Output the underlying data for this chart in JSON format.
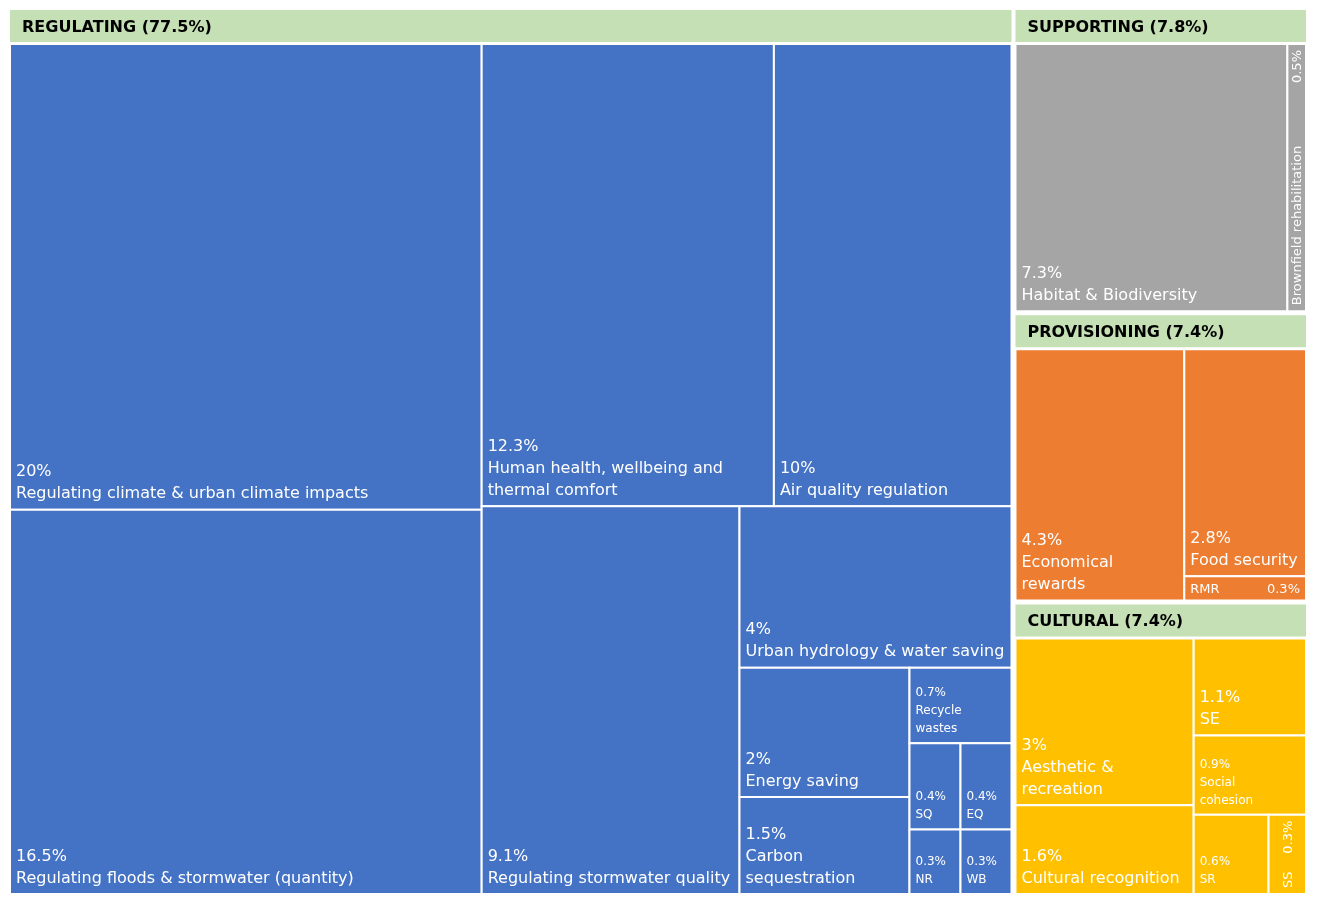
{
  "chart_data": {
    "type": "other",
    "annotations": [
      "REGULATING (77.5%)",
      "SUPPORTING (7.8%)",
      "PROVISIONING (7.4%)",
      "CULTURAL (7.4%)"
    ],
    "categories": [
      "Regulating climate & urban climate impacts",
      "Regulating floods & stormwater (quantity)",
      "Human health, wellbeing and thermal comfort",
      "Air quality regulation",
      "Regulating stormwater quality",
      "Urban hydrology & water saving",
      "Energy saving",
      "Carbon sequestration",
      "Recycle wastes",
      "SQ",
      "EQ",
      "NR",
      "WB",
      "Habitat & Biodiversity",
      "Brownfield rehabilitation",
      "Economical rewards",
      "Food security",
      "RMR",
      "Aesthetic & recreation",
      "Cultural recognition",
      "SE",
      "Social cohesion",
      "SR",
      "SS"
    ],
    "values": [
      20,
      16.5,
      12.3,
      10,
      9.1,
      4,
      2,
      1.5,
      0.7,
      0.4,
      0.4,
      0.3,
      0.3,
      7.3,
      0.5,
      4.3,
      2.8,
      0.3,
      3,
      1.6,
      1.1,
      0.9,
      0.6,
      0.3
    ],
    "value_labels": [
      "20%",
      "16.5%",
      "12.3%",
      "10%",
      "9.1%",
      "4%",
      "2%",
      "1.5%",
      "0.7%",
      "0.4%",
      "0.4%",
      "0.3%",
      "0.3%",
      "7.3%",
      "0.5%",
      "4.3%",
      "2.8%",
      "0.3%",
      "3%",
      "1.6%",
      "1.1%",
      "0.9%",
      "0.6%",
      "0.3%"
    ],
    "colors": [
      "#4472c4",
      "#4472c4",
      "#4472c4",
      "#4472c4",
      "#4472c4",
      "#4472c4",
      "#4472c4",
      "#4472c4",
      "#4472c4",
      "#4472c4",
      "#4472c4",
      "#4472c4",
      "#4472c4",
      "#a5a5a5",
      "#a5a5a5",
      "#ed7d31",
      "#ed7d31",
      "#ed7d31",
      "#ffc000",
      "#ffc000",
      "#ffc000",
      "#ffc000",
      "#ffc000",
      "#ffc000"
    ]
  }
}
